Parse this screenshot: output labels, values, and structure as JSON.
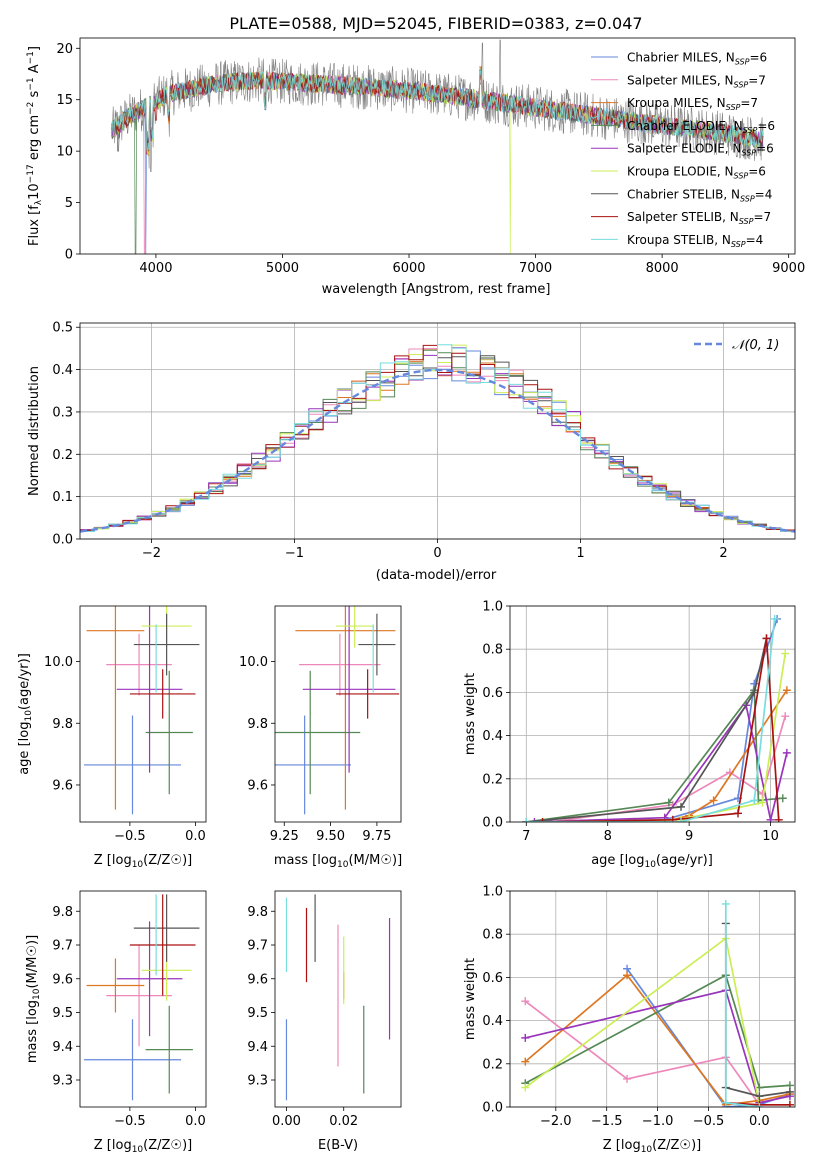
{
  "figure_title": "PLATE=0588, MJD=52045, FIBERID=0383, z=0.047",
  "colors": [
    "#6688dd",
    "#ee88bb",
    "#dd7722",
    "#558855",
    "#9933bb",
    "#ccee55",
    "#555555",
    "#aa1111",
    "#77dddd"
  ],
  "legend_spectrum": [
    {
      "pre": "Chabrier MILES, N",
      "post": "=6"
    },
    {
      "pre": "Salpeter MILES, N",
      "post": "=7"
    },
    {
      "pre": "Kroupa MILES, N",
      "post": "=7"
    },
    {
      "pre": "Chabrier ELODIE, N",
      "post": "=6"
    },
    {
      "pre": "Salpeter ELODIE, N",
      "post": "=6"
    },
    {
      "pre": "Kroupa ELODIE, N",
      "post": "=6"
    },
    {
      "pre": "Chabrier STELIB, N",
      "post": "=4"
    },
    {
      "pre": "Salpeter STELIB, N",
      "post": "=7"
    },
    {
      "pre": "Kroupa STELIB, N",
      "post": "=4"
    }
  ],
  "legend_sub": "SSP",
  "chart_data": [
    {
      "type": "line",
      "name": "spectrum",
      "xlabel": "wavelength [Angstrom, rest frame]",
      "ylabel_parts": [
        "Flux [f",
        "λ",
        "10",
        "−17",
        " erg cm",
        "−2",
        " s",
        "−1",
        " A",
        "−1",
        "]"
      ],
      "xlim": [
        3400,
        9050
      ],
      "ylim": [
        0,
        21
      ],
      "xticks": [
        4000,
        5000,
        6000,
        7000,
        8000,
        9000
      ],
      "yticks": [
        0,
        5,
        10,
        15,
        20
      ],
      "continuum": [
        [
          3650,
          12.0
        ],
        [
          3800,
          13.5
        ],
        [
          3950,
          14.5
        ],
        [
          4100,
          15.6
        ],
        [
          4300,
          16.1
        ],
        [
          4500,
          16.6
        ],
        [
          4800,
          16.9
        ],
        [
          5200,
          16.6
        ],
        [
          5600,
          16.3
        ],
        [
          6000,
          15.9
        ],
        [
          6400,
          15.3
        ],
        [
          6800,
          14.6
        ],
        [
          7200,
          13.9
        ],
        [
          7600,
          13.2
        ],
        [
          8000,
          12.5
        ],
        [
          8400,
          11.9
        ],
        [
          8800,
          11.1
        ]
      ]
    },
    {
      "type": "bar",
      "name": "residual_histogram",
      "xlabel": "(data-model)/error",
      "ylabel": "Normed distribution",
      "xlim": [
        -2.5,
        2.5
      ],
      "ylim": [
        0,
        0.51
      ],
      "xticks": [
        -2,
        -1,
        0,
        1,
        2
      ],
      "yticks": [
        0.0,
        0.1,
        0.2,
        0.3,
        0.4,
        0.5
      ],
      "normal_curve_label": "𝒩(0, 1)",
      "grid": true
    },
    {
      "type": "scatter",
      "name": "age_vs_Z",
      "xlabel": "Z [log10(Z/Z☉)]",
      "ylabel": "age  [log10(age/yr)]",
      "xlim": [
        -0.88,
        0.08
      ],
      "ylim": [
        9.48,
        10.18
      ],
      "xticks": [
        -0.5,
        0.0
      ],
      "yticks": [
        9.6,
        9.8,
        10.0
      ],
      "points": [
        {
          "x": -0.48,
          "xerr": 0.37,
          "y": 9.665,
          "yerr": 0.16
        },
        {
          "x": -0.43,
          "xerr": 0.25,
          "y": 9.99,
          "yerr": 0.1
        },
        {
          "x": -0.61,
          "xerr": 0.22,
          "y": 10.1,
          "yerr": 0.58
        },
        {
          "x": -0.2,
          "xerr": 0.18,
          "y": 9.77,
          "yerr": 0.2
        },
        {
          "x": -0.35,
          "xerr": 0.25,
          "y": 9.91,
          "yerr": 0.27
        },
        {
          "x": -0.22,
          "xerr": 0.19,
          "y": 10.115,
          "yerr": 0.07
        },
        {
          "x": -0.22,
          "xerr": 0.25,
          "y": 10.055,
          "yerr": 0.1
        },
        {
          "x": -0.25,
          "xerr": 0.25,
          "y": 9.895,
          "yerr": 0.08
        },
        {
          "x": -0.3,
          "xerr": 0.0,
          "y": 10.01,
          "yerr": 0.11
        }
      ]
    },
    {
      "type": "scatter",
      "name": "age_vs_mass",
      "xlabel": "mass [log10(M/M☉)]",
      "xlim": [
        9.2,
        9.88
      ],
      "ylim": [
        9.48,
        10.18
      ],
      "xticks": [
        9.25,
        9.5,
        9.75
      ],
      "yticks": [
        9.6,
        9.8,
        10.0
      ],
      "points": [
        {
          "x": 9.36,
          "xerr": 0.25,
          "y": 9.665,
          "yerr": 0.16
        },
        {
          "x": 9.55,
          "xerr": 0.22,
          "y": 9.99,
          "yerr": 0.1
        },
        {
          "x": 9.58,
          "xerr": 0.27,
          "y": 10.1,
          "yerr": 0.58
        },
        {
          "x": 9.39,
          "xerr": 0.27,
          "y": 9.77,
          "yerr": 0.2
        },
        {
          "x": 9.6,
          "xerr": 0.25,
          "y": 9.91,
          "yerr": 0.27
        },
        {
          "x": 9.63,
          "xerr": 0.1,
          "y": 10.115,
          "yerr": 0.07
        },
        {
          "x": 9.75,
          "xerr": 0.1,
          "y": 10.055,
          "yerr": 0.1
        },
        {
          "x": 9.7,
          "xerr": 0.17,
          "y": 9.895,
          "yerr": 0.08
        },
        {
          "x": 9.73,
          "xerr": 0.0,
          "y": 10.01,
          "yerr": 0.11
        }
      ]
    },
    {
      "type": "line",
      "name": "mass_weight_vs_age",
      "xlabel": "age  [log10(age/yr)]",
      "ylabel": "mass weight",
      "xlim": [
        6.8,
        10.3
      ],
      "ylim": [
        0,
        1.0
      ],
      "xticks": [
        7,
        8,
        9,
        10
      ],
      "yticks": [
        0.0,
        0.2,
        0.4,
        0.6,
        0.8,
        1.0
      ],
      "series": [
        {
          "points": [
            [
              7.0,
              0.0
            ],
            [
              8.7,
              0.01
            ],
            [
              9.6,
              0.11
            ],
            [
              9.8,
              0.64
            ],
            [
              10.08,
              0.94
            ]
          ]
        },
        {
          "points": [
            [
              7.3,
              0.0
            ],
            [
              8.8,
              0.08
            ],
            [
              9.5,
              0.23
            ],
            [
              9.9,
              0.13
            ],
            [
              10.18,
              0.49
            ]
          ]
        },
        {
          "points": [
            [
              7.2,
              0.0
            ],
            [
              8.8,
              0.01
            ],
            [
              9.0,
              0.03
            ],
            [
              9.3,
              0.1
            ],
            [
              10.2,
              0.61
            ]
          ]
        },
        {
          "points": [
            [
              7.0,
              0.0
            ],
            [
              8.75,
              0.09
            ],
            [
              9.8,
              0.61
            ],
            [
              9.85,
              0.1
            ],
            [
              10.15,
              0.11
            ]
          ]
        },
        {
          "points": [
            [
              7.1,
              0.0
            ],
            [
              8.7,
              0.02
            ],
            [
              9.7,
              0.54
            ],
            [
              10.0,
              0.01
            ],
            [
              10.2,
              0.32
            ]
          ]
        },
        {
          "points": [
            [
              7.2,
              0.0
            ],
            [
              8.9,
              0.01
            ],
            [
              9.0,
              0.02
            ],
            [
              9.9,
              0.09
            ],
            [
              10.18,
              0.78
            ]
          ]
        },
        {
          "points": [
            [
              7.0,
              0.0
            ],
            [
              8.9,
              0.07
            ],
            [
              9.8,
              0.6
            ],
            [
              9.95,
              0.85
            ]
          ]
        },
        {
          "points": [
            [
              7.2,
              0.0
            ],
            [
              8.8,
              0.01
            ],
            [
              9.6,
              0.04
            ],
            [
              9.95,
              0.85
            ],
            [
              10.1,
              0.01
            ]
          ]
        },
        {
          "points": [
            [
              7.0,
              0.0
            ],
            [
              8.9,
              0.0
            ],
            [
              9.8,
              0.1
            ],
            [
              10.05,
              0.94
            ]
          ]
        }
      ]
    },
    {
      "type": "scatter",
      "name": "mass_vs_Z",
      "xlabel": "Z [log10(Z/Z☉)]",
      "ylabel": "mass [log10(M/M☉)]",
      "xlim": [
        -0.88,
        0.08
      ],
      "ylim": [
        9.22,
        9.86
      ],
      "xticks": [
        -0.5,
        0.0
      ],
      "yticks": [
        9.3,
        9.4,
        9.5,
        9.6,
        9.7,
        9.8
      ],
      "points": [
        {
          "x": -0.48,
          "xerr": 0.37,
          "y": 9.36,
          "yerr": 0.12
        },
        {
          "x": -0.43,
          "xerr": 0.25,
          "y": 9.55,
          "yerr": 0.15
        },
        {
          "x": -0.61,
          "xerr": 0.22,
          "y": 9.58,
          "yerr": 0.08
        },
        {
          "x": -0.2,
          "xerr": 0.18,
          "y": 9.39,
          "yerr": 0.13
        },
        {
          "x": -0.35,
          "xerr": 0.25,
          "y": 9.6,
          "yerr": 0.17
        },
        {
          "x": -0.22,
          "xerr": 0.19,
          "y": 9.625,
          "yerr": 0.09
        },
        {
          "x": -0.22,
          "xerr": 0.25,
          "y": 9.75,
          "yerr": 0.1
        },
        {
          "x": -0.25,
          "xerr": 0.25,
          "y": 9.7,
          "yerr": 0.15
        },
        {
          "x": -0.3,
          "xerr": 0.0,
          "y": 9.73,
          "yerr": 0.12
        }
      ]
    },
    {
      "type": "scatter",
      "name": "mass_vs_ebv",
      "xlabel": "E(B-V)",
      "xlim": [
        -0.004,
        0.04
      ],
      "ylim": [
        9.22,
        9.86
      ],
      "xticks": [
        0.0,
        0.02
      ],
      "yticks": [
        9.3,
        9.4,
        9.5,
        9.6,
        9.7,
        9.8
      ],
      "points": [
        {
          "x": 0.0,
          "y": 9.36,
          "yerr": 0.12
        },
        {
          "x": 0.018,
          "y": 9.55,
          "yerr": 0.21
        },
        {
          "x": 0.02,
          "y": 9.58,
          "yerr": 0.04
        },
        {
          "x": 0.027,
          "y": 9.39,
          "yerr": 0.13
        },
        {
          "x": 0.036,
          "y": 9.6,
          "yerr": 0.18
        },
        {
          "x": 0.02,
          "y": 9.625,
          "yerr": 0.1
        },
        {
          "x": 0.01,
          "y": 9.75,
          "yerr": 0.1
        },
        {
          "x": 0.007,
          "y": 9.7,
          "yerr": 0.11
        },
        {
          "x": 0.0,
          "y": 9.73,
          "yerr": 0.11
        }
      ]
    },
    {
      "type": "line",
      "name": "mass_weight_vs_Z",
      "xlabel": "Z [log10(Z/Z☉)]",
      "ylabel": "mass weight",
      "xlim": [
        -2.45,
        0.35
      ],
      "ylim": [
        0,
        1.0
      ],
      "xticks": [
        -2.0,
        -1.5,
        -1.0,
        -0.5,
        0.0
      ],
      "yticks": [
        0.0,
        0.2,
        0.4,
        0.6,
        0.8,
        1.0
      ],
      "series": [
        {
          "points": [
            [
              -1.3,
              0.64
            ],
            [
              -0.33,
              0.0
            ],
            [
              0.0,
              0.01
            ],
            [
              0.3,
              0.06
            ]
          ]
        },
        {
          "points": [
            [
              -2.3,
              0.49
            ],
            [
              -1.3,
              0.13
            ],
            [
              -0.33,
              0.23
            ],
            [
              0.0,
              0.01
            ],
            [
              0.3,
              0.01
            ]
          ]
        },
        {
          "points": [
            [
              -2.3,
              0.21
            ],
            [
              -1.3,
              0.61
            ],
            [
              -0.33,
              0.01
            ],
            [
              0.0,
              0.03
            ],
            [
              0.3,
              0.06
            ]
          ]
        },
        {
          "points": [
            [
              -2.3,
              0.11
            ],
            [
              -0.33,
              0.61
            ],
            [
              0.0,
              0.09
            ],
            [
              0.3,
              0.1
            ]
          ]
        },
        {
          "points": [
            [
              -2.3,
              0.32
            ],
            [
              -0.33,
              0.54
            ],
            [
              0.0,
              0.02
            ],
            [
              0.3,
              0.05
            ]
          ]
        },
        {
          "points": [
            [
              -2.3,
              0.09
            ],
            [
              -0.33,
              0.78
            ],
            [
              0.0,
              0.01
            ],
            [
              0.3,
              0.01
            ]
          ]
        },
        {
          "points": [
            [
              -0.33,
              0.85
            ],
            [
              -0.33,
              0.09
            ],
            [
              0.0,
              0.05
            ],
            [
              0.3,
              0.07
            ]
          ]
        },
        {
          "points": [
            [
              -0.33,
              0.02
            ],
            [
              0.0,
              0.01
            ],
            [
              0.3,
              0.01
            ]
          ]
        },
        {
          "points": [
            [
              -0.33,
              0.94
            ],
            [
              -0.33,
              0.02
            ],
            [
              0.0,
              0.0
            ]
          ]
        }
      ]
    }
  ]
}
